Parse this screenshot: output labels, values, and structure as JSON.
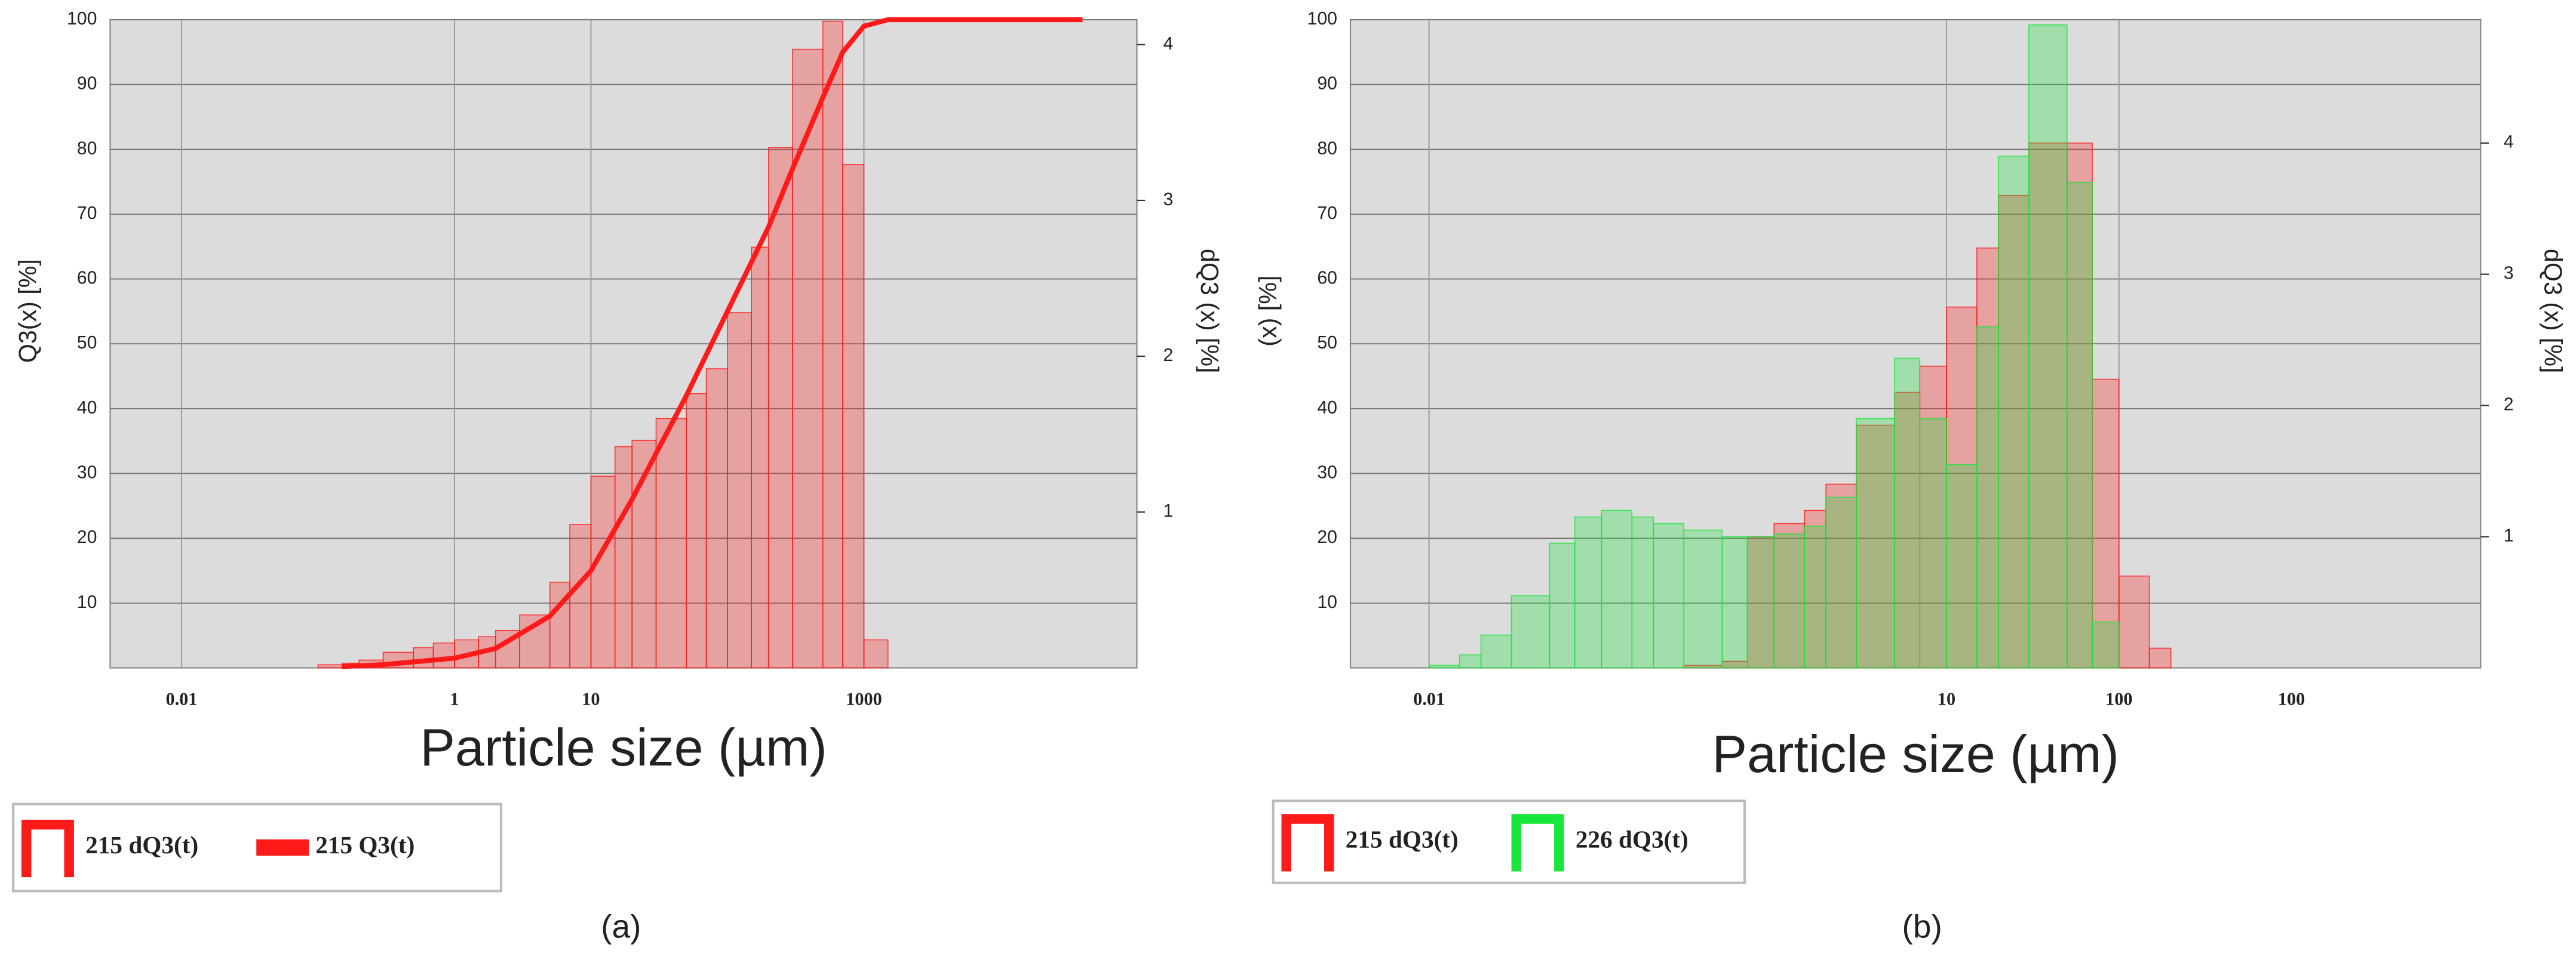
{
  "chart_data": [
    {
      "type": "histogram",
      "caption": "(a)",
      "xlabel": "Particle size (µm)",
      "ylabel": "Q3(x) [%]",
      "y2label": "dQ3 (x) [%]",
      "xscale": "log",
      "xlim": [
        0.003,
        100000
      ],
      "xticks": [
        0.01,
        1,
        10,
        1000
      ],
      "ylim": [
        0,
        100
      ],
      "yticks": [
        10,
        20,
        30,
        40,
        50,
        60,
        70,
        80,
        90,
        100
      ],
      "y2lim": [
        0,
        4.16
      ],
      "y2ticks": [
        1,
        2,
        3,
        4
      ],
      "grid": true,
      "bins": [
        0.1,
        0.15,
        0.2,
        0.3,
        0.5,
        0.7,
        1,
        1.5,
        2,
        3,
        5,
        7,
        10,
        15,
        20,
        30,
        50,
        70,
        100,
        150,
        200,
        300,
        500,
        700,
        1000,
        1500
      ],
      "series": [
        {
          "name": "215 dQ3(t)",
          "type": "histogram",
          "axis": "y2",
          "color": "#ff1a1a",
          "values": [
            0.02,
            0.03,
            0.05,
            0.1,
            0.13,
            0.16,
            0.18,
            0.2,
            0.24,
            0.34,
            0.55,
            0.92,
            1.23,
            1.42,
            1.46,
            1.6,
            1.76,
            1.92,
            2.28,
            2.7,
            3.34,
            3.97,
            4.15,
            3.23,
            0.18
          ]
        },
        {
          "name": "215 Q3(t)",
          "type": "line",
          "color": "#ff1a1a",
          "x": [
            0.15,
            0.3,
            1,
            2,
            5,
            10,
            20,
            50,
            100,
            200,
            300,
            500,
            700,
            1000,
            1500,
            40000
          ],
          "values": [
            0.2,
            0.5,
            1.5,
            3,
            8,
            15,
            26,
            42,
            55,
            68,
            77,
            88,
            95,
            99,
            100,
            100
          ]
        }
      ]
    },
    {
      "type": "histogram",
      "caption": "(b)",
      "xlabel": "Particle size (µm)",
      "ylabel": "(x) [%]",
      "y2label": "dQ3 (x) [%]",
      "xscale": "log",
      "xlim": [
        0.0035,
        12500
      ],
      "xticks": [
        0.01,
        10,
        100
      ],
      "annotations": [
        {
          "text": "100",
          "x": 1000
        }
      ],
      "ylim": [
        0,
        100
      ],
      "yticks": [
        10,
        20,
        30,
        40,
        50,
        60,
        70,
        80,
        90,
        100
      ],
      "y2lim": [
        0,
        4.94
      ],
      "y2ticks": [
        1,
        2,
        3,
        4
      ],
      "grid": true,
      "bins": [
        0.01,
        0.015,
        0.02,
        0.03,
        0.05,
        0.07,
        0.1,
        0.15,
        0.2,
        0.3,
        0.5,
        0.7,
        1,
        1.5,
        2,
        3,
        5,
        7,
        10,
        15,
        20,
        30,
        50,
        70,
        100,
        150,
        200
      ],
      "series": [
        {
          "name": "215 dQ3(t)",
          "type": "histogram",
          "axis": "y2",
          "color": "#ff1a1a",
          "values": [
            0,
            0,
            0,
            0,
            0,
            0,
            0,
            0,
            0,
            0.02,
            0.05,
            1.0,
            1.1,
            1.2,
            1.4,
            1.85,
            2.1,
            2.3,
            2.75,
            3.2,
            3.6,
            4.0,
            4.0,
            2.2,
            0.7,
            0.15
          ]
        },
        {
          "name": "226 dQ3(t)",
          "type": "histogram",
          "axis": "y2",
          "color": "#19e63c",
          "values": [
            0.02,
            0.1,
            0.25,
            0.55,
            0.95,
            1.15,
            1.2,
            1.15,
            1.1,
            1.05,
            1.0,
            1.0,
            1.02,
            1.08,
            1.3,
            1.9,
            2.36,
            1.9,
            1.55,
            2.6,
            3.9,
            4.9,
            3.7,
            0.35,
            0,
            0
          ]
        }
      ]
    }
  ]
}
